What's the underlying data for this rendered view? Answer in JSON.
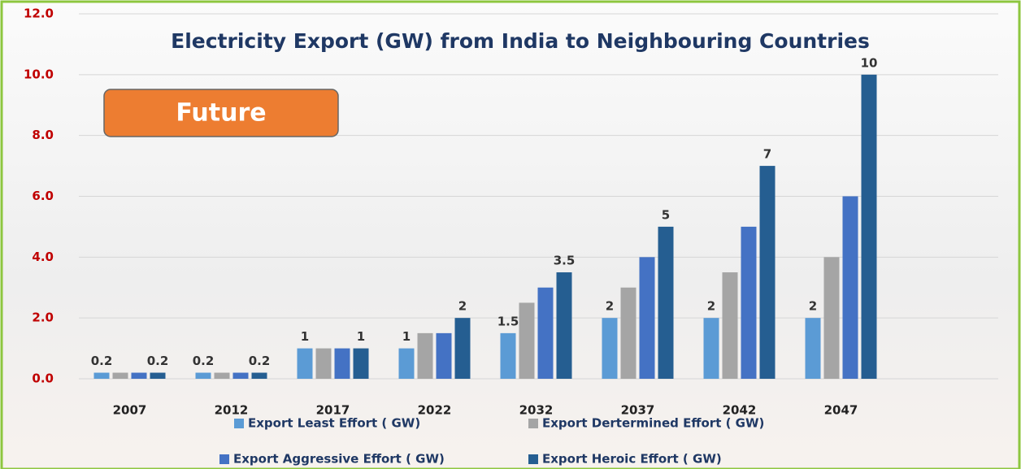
{
  "chart_data": {
    "type": "bar",
    "title": "Electricity Export (GW) from India to Neighbouring  Countries",
    "annotation": "Future",
    "categories": [
      "2007",
      "2012",
      "2017",
      "2022",
      "2032",
      "2037",
      "2042",
      "2047"
    ],
    "series": [
      {
        "name": "Export Least Effort ( GW)",
        "color": "#5b9bd5",
        "show_labels": true,
        "values": [
          0.2,
          0.2,
          1,
          1,
          1.5,
          2,
          2,
          2
        ]
      },
      {
        "name": "Export Dertermined Effort ( GW)",
        "color": "#a5a5a5",
        "show_labels": false,
        "values": [
          0.2,
          0.2,
          1,
          1.5,
          2.5,
          3,
          3.5,
          4
        ]
      },
      {
        "name": "Export Aggressive Effort ( GW)",
        "color": "#4472c4",
        "show_labels": false,
        "values": [
          0.2,
          0.2,
          1,
          1.5,
          3,
          4,
          5,
          6
        ]
      },
      {
        "name": "Export Heroic Effort ( GW)",
        "color": "#255e91",
        "show_labels": true,
        "values": [
          0.2,
          0.2,
          1,
          2,
          3.5,
          5,
          7,
          10
        ]
      }
    ],
    "ylim": [
      0,
      12
    ],
    "yticks": [
      {
        "value": 0,
        "label": "0.0"
      },
      {
        "value": 2,
        "label": "2.0"
      },
      {
        "value": 4,
        "label": "4.0"
      },
      {
        "value": 6,
        "label": "6.0"
      },
      {
        "value": 8,
        "label": "8.0"
      },
      {
        "value": 10,
        "label": "10.0"
      },
      {
        "value": 12,
        "label": "12.0"
      }
    ],
    "grid": true,
    "legend": "bottom"
  }
}
